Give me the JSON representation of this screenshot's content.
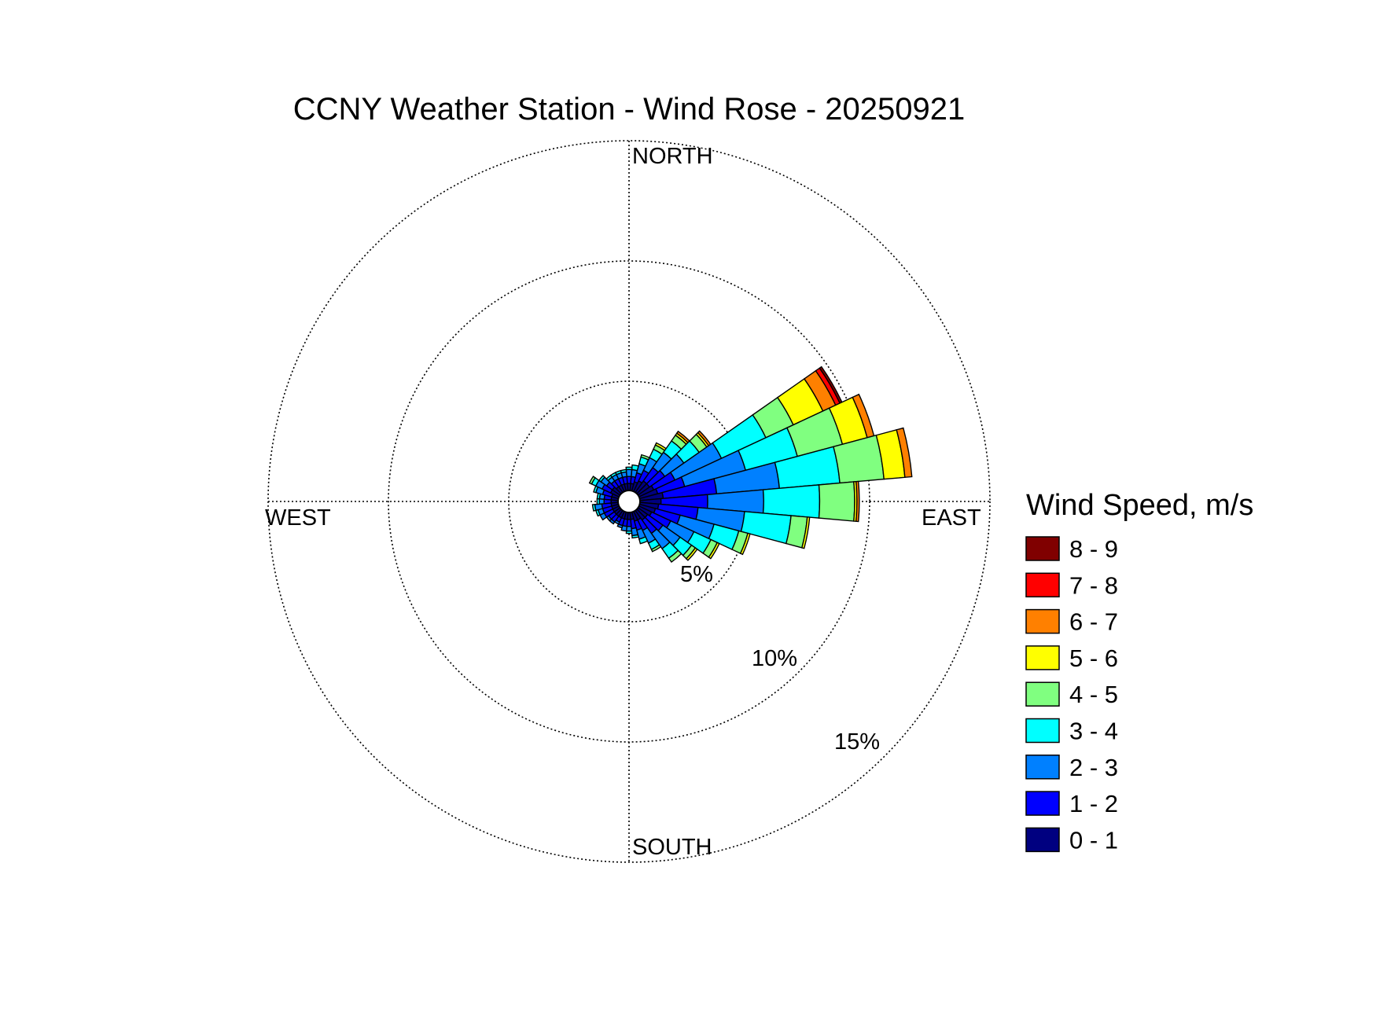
{
  "chart_data": {
    "type": "windrose",
    "title": "CCNY Weather Station - Wind Rose - 20250921",
    "directions": {
      "north": "NORTH",
      "east": "EAST",
      "south": "SOUTH",
      "west": "WEST"
    },
    "radial_max_percent": 15,
    "ring_values": [
      5,
      10,
      15
    ],
    "ring_labels": [
      "5%",
      "10%",
      "15%"
    ],
    "legend": {
      "title": "Wind Speed, m/s",
      "bins": [
        {
          "label": "8 - 9",
          "color": "#800000"
        },
        {
          "label": "7 - 8",
          "color": "#ff0000"
        },
        {
          "label": "6 - 7",
          "color": "#ff8000"
        },
        {
          "label": "5 - 6",
          "color": "#ffff00"
        },
        {
          "label": "4 - 5",
          "color": "#80ff80"
        },
        {
          "label": "3 - 4",
          "color": "#00ffff"
        },
        {
          "label": "2 - 3",
          "color": "#0080ff"
        },
        {
          "label": "1 - 2",
          "color": "#0000ff"
        },
        {
          "label": "0 - 1",
          "color": "#000080"
        }
      ]
    },
    "bin_order_inner_to_outer": [
      "0 - 1",
      "1 - 2",
      "2 - 3",
      "3 - 4",
      "4 - 5",
      "5 - 6",
      "6 - 7",
      "7 - 8",
      "8 - 9"
    ],
    "sector_width_deg": 10,
    "series": [
      {
        "direction_deg": 10,
        "values": [
          0.3,
          0.3,
          0.3,
          0.2,
          0.0,
          0.0,
          0.0,
          0.0,
          0.0
        ]
      },
      {
        "direction_deg": 20,
        "values": [
          0.4,
          0.4,
          0.4,
          0.3,
          0.1,
          0.0,
          0.0,
          0.0,
          0.0
        ]
      },
      {
        "direction_deg": 30,
        "values": [
          0.5,
          0.5,
          0.6,
          0.4,
          0.2,
          0.1,
          0.0,
          0.0,
          0.0
        ]
      },
      {
        "direction_deg": 40,
        "values": [
          0.6,
          0.7,
          0.8,
          0.6,
          0.3,
          0.1,
          0.1,
          0.0,
          0.0
        ]
      },
      {
        "direction_deg": 50,
        "values": [
          0.6,
          0.8,
          1.0,
          0.8,
          0.4,
          0.1,
          0.1,
          0.0,
          0.0
        ]
      },
      {
        "direction_deg": 60,
        "values": [
          0.7,
          1.0,
          2.2,
          2.1,
          1.3,
          1.4,
          0.6,
          0.2,
          0.1
        ]
      },
      {
        "direction_deg": 70,
        "values": [
          0.8,
          1.2,
          2.7,
          2.3,
          2.0,
          1.1,
          0.3,
          0.0,
          0.0
        ]
      },
      {
        "direction_deg": 80,
        "values": [
          1.0,
          2.3,
          2.7,
          2.6,
          1.9,
          0.9,
          0.3,
          0.0,
          0.0
        ]
      },
      {
        "direction_deg": 90,
        "values": [
          0.9,
          2.0,
          2.4,
          2.4,
          1.5,
          0.1,
          0.1,
          0.0,
          0.0
        ]
      },
      {
        "direction_deg": 100,
        "values": [
          0.8,
          1.7,
          2.0,
          2.0,
          0.7,
          0.1,
          0.0,
          0.0,
          0.0
        ]
      },
      {
        "direction_deg": 110,
        "values": [
          0.7,
          1.1,
          1.5,
          1.1,
          0.4,
          0.1,
          0.0,
          0.0,
          0.0
        ]
      },
      {
        "direction_deg": 120,
        "values": [
          0.6,
          0.9,
          1.1,
          0.8,
          0.3,
          0.1,
          0.0,
          0.0,
          0.0
        ]
      },
      {
        "direction_deg": 130,
        "values": [
          0.5,
          0.8,
          0.9,
          0.6,
          0.2,
          0.1,
          0.0,
          0.0,
          0.0
        ]
      },
      {
        "direction_deg": 140,
        "values": [
          0.5,
          0.7,
          0.8,
          0.5,
          0.2,
          0.0,
          0.0,
          0.0,
          0.0
        ]
      },
      {
        "direction_deg": 150,
        "values": [
          0.4,
          0.5,
          0.6,
          0.3,
          0.1,
          0.0,
          0.0,
          0.0,
          0.0
        ]
      },
      {
        "direction_deg": 160,
        "values": [
          0.4,
          0.4,
          0.4,
          0.2,
          0.0,
          0.0,
          0.0,
          0.0,
          0.0
        ]
      },
      {
        "direction_deg": 170,
        "values": [
          0.3,
          0.4,
          0.3,
          0.1,
          0.0,
          0.0,
          0.0,
          0.0,
          0.0
        ]
      },
      {
        "direction_deg": 180,
        "values": [
          0.3,
          0.3,
          0.2,
          0.1,
          0.0,
          0.0,
          0.0,
          0.0,
          0.0
        ]
      },
      {
        "direction_deg": 190,
        "values": [
          0.3,
          0.3,
          0.2,
          0.0,
          0.0,
          0.0,
          0.0,
          0.0,
          0.0
        ]
      },
      {
        "direction_deg": 200,
        "values": [
          0.3,
          0.3,
          0.1,
          0.0,
          0.0,
          0.0,
          0.0,
          0.0,
          0.0
        ]
      },
      {
        "direction_deg": 210,
        "values": [
          0.3,
          0.2,
          0.1,
          0.0,
          0.0,
          0.0,
          0.0,
          0.0,
          0.0
        ]
      },
      {
        "direction_deg": 220,
        "values": [
          0.3,
          0.3,
          0.1,
          0.0,
          0.0,
          0.0,
          0.0,
          0.0,
          0.0
        ]
      },
      {
        "direction_deg": 230,
        "values": [
          0.3,
          0.3,
          0.1,
          0.0,
          0.0,
          0.0,
          0.0,
          0.0,
          0.0
        ]
      },
      {
        "direction_deg": 240,
        "values": [
          0.3,
          0.4,
          0.2,
          0.0,
          0.0,
          0.0,
          0.0,
          0.0,
          0.0
        ]
      },
      {
        "direction_deg": 250,
        "values": [
          0.3,
          0.4,
          0.2,
          0.1,
          0.0,
          0.0,
          0.0,
          0.0,
          0.0
        ]
      },
      {
        "direction_deg": 260,
        "values": [
          0.3,
          0.4,
          0.3,
          0.1,
          0.0,
          0.0,
          0.0,
          0.0,
          0.0
        ]
      },
      {
        "direction_deg": 270,
        "values": [
          0.3,
          0.3,
          0.2,
          0.1,
          0.0,
          0.0,
          0.0,
          0.0,
          0.0
        ]
      },
      {
        "direction_deg": 280,
        "values": [
          0.3,
          0.3,
          0.2,
          0.1,
          0.0,
          0.0,
          0.0,
          0.0,
          0.0
        ]
      },
      {
        "direction_deg": 290,
        "values": [
          0.3,
          0.4,
          0.3,
          0.1,
          0.0,
          0.0,
          0.0,
          0.0,
          0.0
        ]
      },
      {
        "direction_deg": 300,
        "values": [
          0.4,
          0.4,
          0.3,
          0.2,
          0.1,
          0.0,
          0.0,
          0.0,
          0.0
        ]
      },
      {
        "direction_deg": 310,
        "values": [
          0.4,
          0.3,
          0.3,
          0.1,
          0.0,
          0.0,
          0.0,
          0.0,
          0.0
        ]
      },
      {
        "direction_deg": 320,
        "values": [
          0.3,
          0.3,
          0.2,
          0.1,
          0.0,
          0.0,
          0.0,
          0.0,
          0.0
        ]
      },
      {
        "direction_deg": 330,
        "values": [
          0.3,
          0.3,
          0.2,
          0.1,
          0.0,
          0.0,
          0.0,
          0.0,
          0.0
        ]
      },
      {
        "direction_deg": 340,
        "values": [
          0.3,
          0.3,
          0.2,
          0.1,
          0.0,
          0.0,
          0.0,
          0.0,
          0.0
        ]
      },
      {
        "direction_deg": 350,
        "values": [
          0.3,
          0.3,
          0.2,
          0.1,
          0.0,
          0.0,
          0.0,
          0.0,
          0.0
        ]
      },
      {
        "direction_deg": 360,
        "values": [
          0.3,
          0.3,
          0.3,
          0.1,
          0.0,
          0.0,
          0.0,
          0.0,
          0.0
        ]
      }
    ]
  }
}
